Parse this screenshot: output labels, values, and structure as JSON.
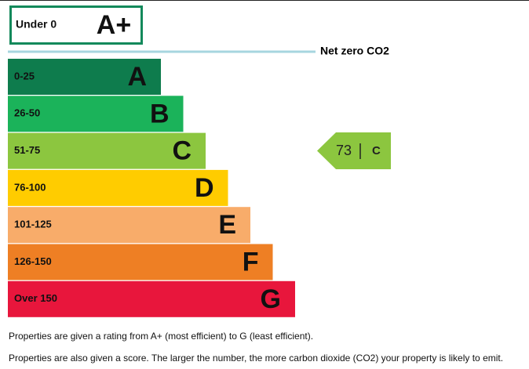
{
  "top": {
    "label": "Under 0",
    "rating": "A+"
  },
  "net_zero": "Net zero CO2",
  "bands": [
    {
      "range": "0-25",
      "letter": "A",
      "color": "#0e7c4d"
    },
    {
      "range": "26-50",
      "letter": "B",
      "color": "#1bb35a"
    },
    {
      "range": "51-75",
      "letter": "C",
      "color": "#8cc63f"
    },
    {
      "range": "76-100",
      "letter": "D",
      "color": "#ffcc00"
    },
    {
      "range": "101-125",
      "letter": "E",
      "color": "#f8ac6a"
    },
    {
      "range": "126-150",
      "letter": "F",
      "color": "#ee7f24"
    },
    {
      "range": "Over 150",
      "letter": "G",
      "color": "#e8163c"
    }
  ],
  "current": {
    "score": "73",
    "rating": "C",
    "color": "#8cc63f"
  },
  "notes": [
    "Properties are given a rating from A+ (most efficient) to G (least efficient).",
    "Properties are also given a score. The larger the number, the more carbon dioxide (CO2) your property is likely to emit."
  ]
}
